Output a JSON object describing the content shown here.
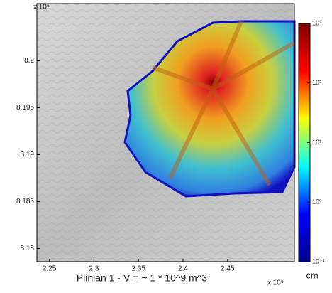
{
  "chart_data": {
    "type": "image",
    "title": "Plinian 1 - V = ~ 1 * 10^9 m^3",
    "x_multiplier": "x 10⁵",
    "y_multiplier": "x 10⁶",
    "xlim": [
      2.236,
      2.525
    ],
    "xticks": [
      2.25,
      2.3,
      2.35,
      2.4,
      2.45
    ],
    "ylim": [
      8.1786,
      8.2061
    ],
    "yticks": [
      8.18,
      8.185,
      8.19,
      8.195,
      8.2
    ],
    "colorbar": {
      "label": "cm",
      "scale": "log",
      "lim": [
        0.1,
        1000
      ],
      "colors": [
        "#00008f",
        "#0000ff",
        "#00ffff",
        "#ffff00",
        "#ff0000",
        "#800000"
      ],
      "ticks": [
        {
          "value": 0.1,
          "label": "10⁻¹"
        },
        {
          "value": 1,
          "label": "10⁰"
        },
        {
          "value": 10,
          "label": "10¹"
        },
        {
          "value": 100,
          "label": "10²"
        },
        {
          "value": 1000,
          "label": "10³"
        }
      ]
    }
  }
}
